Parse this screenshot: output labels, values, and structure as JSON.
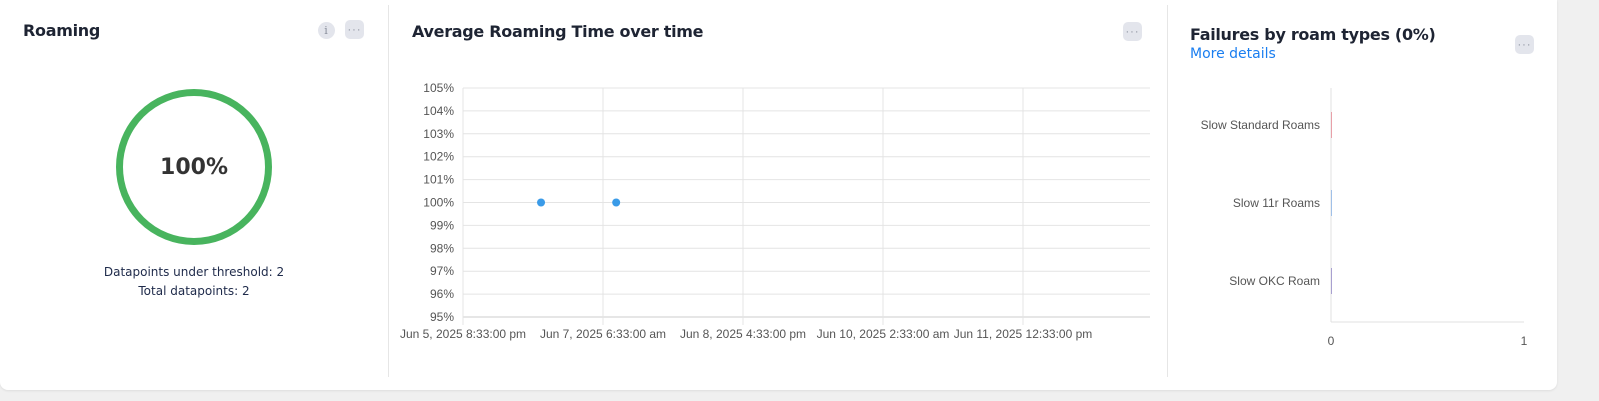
{
  "roaming": {
    "title": "Roaming",
    "value": "100%",
    "percent": 100,
    "ring_color": "#48b45e",
    "under_threshold": "Datapoints under threshold: 2",
    "total": "Total datapoints: 2",
    "info_icon": "info-icon",
    "more_icon": "more-horizontal-icon"
  },
  "avg_chart": {
    "title": "Average Roaming Time over time",
    "more_icon": "more-horizontal-icon"
  },
  "failures": {
    "title": "Failures by roam types (0%)",
    "more_details": "More details",
    "more_icon": "more-horizontal-icon"
  },
  "chart_data": [
    {
      "type": "scatter",
      "title": "Average Roaming Time over time",
      "ylim": [
        95,
        105
      ],
      "yticks": [
        "95%",
        "96%",
        "97%",
        "98%",
        "99%",
        "100%",
        "101%",
        "102%",
        "103%",
        "104%",
        "105%"
      ],
      "xticks": [
        "Jun 5, 2025 8:33:00 pm",
        "Jun 7, 2025 6:33:00 am",
        "Jun 8, 2025 4:33:00 pm",
        "Jun 10, 2025 2:33:00 am",
        "Jun 11, 2025 12:33:00 pm"
      ],
      "x": [
        "Jun 6, 2025 3:30 pm",
        "Jun 7, 2025 9:45 am"
      ],
      "y": [
        100,
        100
      ],
      "point_color": "#3a9be8",
      "grid": true
    },
    {
      "type": "bar",
      "orientation": "horizontal",
      "categories": [
        "Slow Standard Roams",
        "Slow 11r Roams",
        "Slow OKC Roam"
      ],
      "values": [
        0,
        0,
        0
      ],
      "colors": [
        "#e8a0a8",
        "#a0c0e8",
        "#a8a0d0"
      ],
      "xlim": [
        0,
        1
      ],
      "xticks": [
        "0",
        "1"
      ]
    }
  ]
}
